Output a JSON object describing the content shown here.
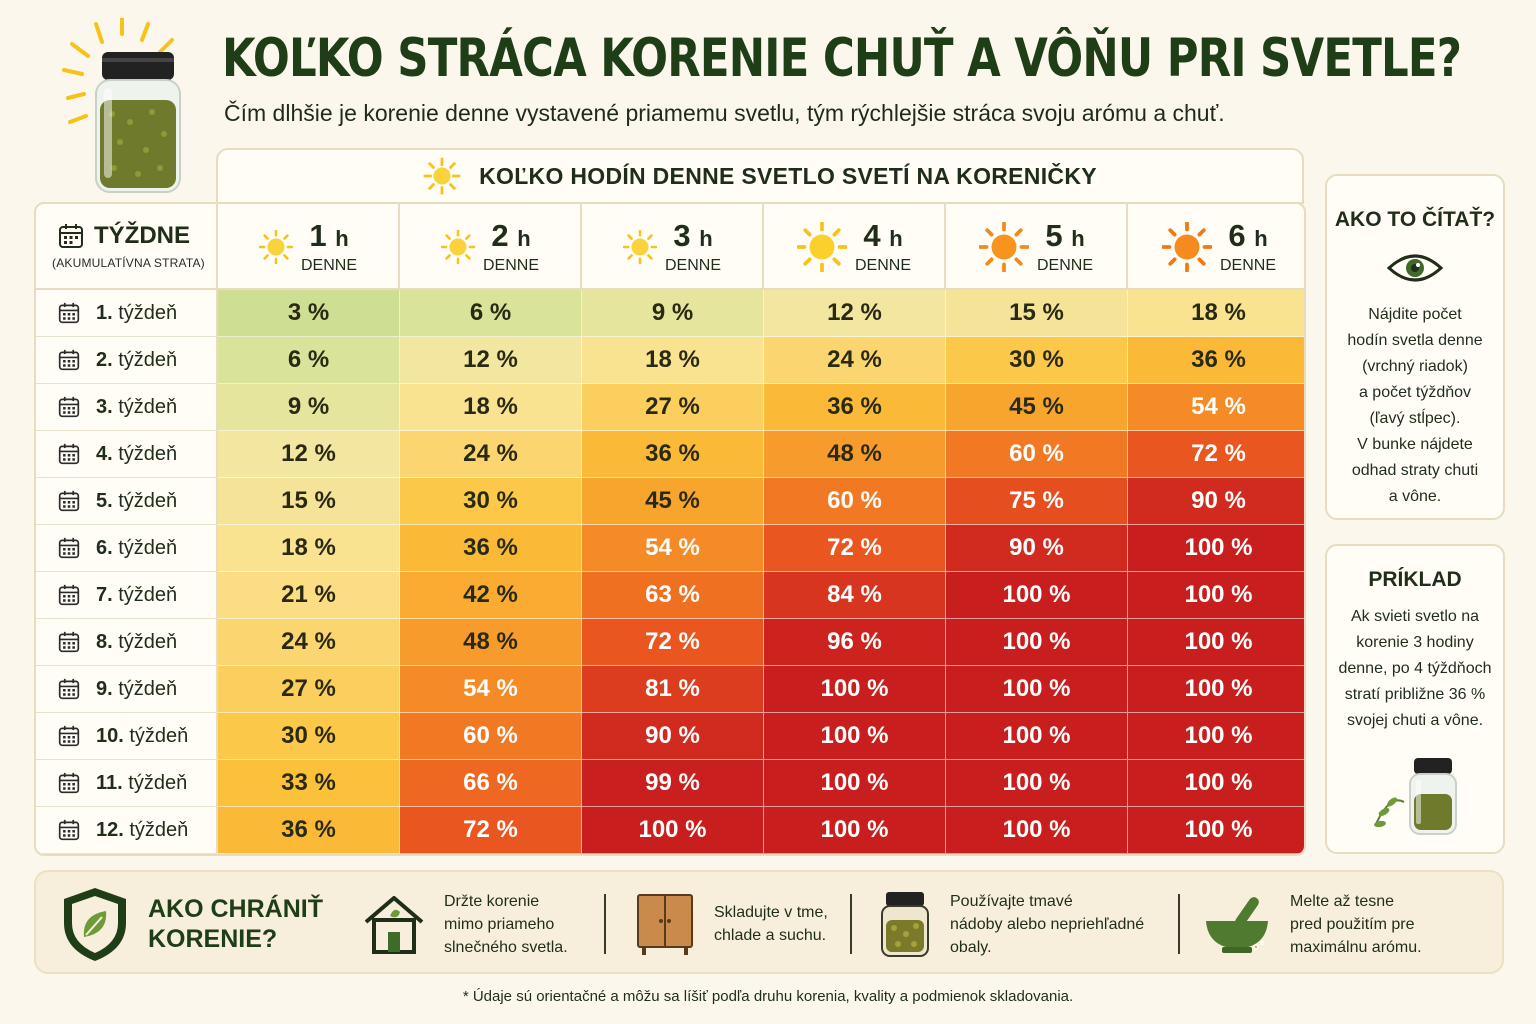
{
  "title": "KOĽKO STRÁCA KORENIE CHUŤ A VÔŇU PRI SVETLE?",
  "subtitle": "Čím dlhšie je korenie denne vystavené priamemu svetlu, tým rýchlejšie stráca svoju arómu a chuť.",
  "hours_banner": "KOĽKO HODÍN DENNE SVETLO SVETÍ NA KORENIČKY",
  "weeks_header": {
    "title": "TÝŽDNE",
    "sub": "(AKUMULATÍVNA STRATA)"
  },
  "hours": [
    {
      "num": "1",
      "unit": "h",
      "label": "DENNE"
    },
    {
      "num": "2",
      "unit": "h",
      "label": "DENNE"
    },
    {
      "num": "3",
      "unit": "h",
      "label": "DENNE"
    },
    {
      "num": "4",
      "unit": "h",
      "label": "DENNE"
    },
    {
      "num": "5",
      "unit": "h",
      "label": "DENNE"
    },
    {
      "num": "6",
      "unit": "h",
      "label": "DENNE"
    }
  ],
  "rows": [
    {
      "num": "1.",
      "label": "týždeň",
      "values": [
        "3 %",
        "6 %",
        "9 %",
        "12 %",
        "15 %",
        "18 %"
      ]
    },
    {
      "num": "2.",
      "label": "týždeň",
      "values": [
        "6 %",
        "12 %",
        "18 %",
        "24 %",
        "30 %",
        "36 %"
      ]
    },
    {
      "num": "3.",
      "label": "týždeň",
      "values": [
        "9 %",
        "18 %",
        "27 %",
        "36 %",
        "45 %",
        "54 %"
      ]
    },
    {
      "num": "4.",
      "label": "týždeň",
      "values": [
        "12 %",
        "24 %",
        "36 %",
        "48 %",
        "60 %",
        "72 %"
      ]
    },
    {
      "num": "5.",
      "label": "týždeň",
      "values": [
        "15 %",
        "30 %",
        "45 %",
        "60 %",
        "75 %",
        "90 %"
      ]
    },
    {
      "num": "6.",
      "label": "týždeň",
      "values": [
        "18 %",
        "36 %",
        "54 %",
        "72 %",
        "90 %",
        "100 %"
      ]
    },
    {
      "num": "7.",
      "label": "týždeň",
      "values": [
        "21 %",
        "42 %",
        "63 %",
        "84 %",
        "100 %",
        "100 %"
      ]
    },
    {
      "num": "8.",
      "label": "týždeň",
      "values": [
        "24 %",
        "48 %",
        "72 %",
        "96 %",
        "100 %",
        "100 %"
      ]
    },
    {
      "num": "9.",
      "label": "týždeň",
      "values": [
        "27 %",
        "54 %",
        "81 %",
        "100 %",
        "100 %",
        "100 %"
      ]
    },
    {
      "num": "10.",
      "label": "týždeň",
      "values": [
        "30 %",
        "60 %",
        "90 %",
        "100 %",
        "100 %",
        "100 %"
      ]
    },
    {
      "num": "11.",
      "label": "týždeň",
      "values": [
        "33 %",
        "66 %",
        "99 %",
        "100 %",
        "100 %",
        "100 %"
      ]
    },
    {
      "num": "12.",
      "label": "týždeň",
      "values": [
        "36 %",
        "72 %",
        "100 %",
        "100 %",
        "100 %",
        "100 %"
      ]
    }
  ],
  "how_to_read": {
    "title": "AKO TO ČÍTAŤ?",
    "lines": [
      "Nájdite počet",
      "hodín svetla denne",
      "(vrchný riadok)",
      "a počet týždňov",
      "(ľavý stĺpec).",
      "V bunke nájdete",
      "odhad straty chuti",
      "a vône."
    ]
  },
  "example": {
    "title": "PRÍKLAD",
    "lines": [
      "Ak svieti svetlo na",
      "korenie 3 hodiny",
      "denne, po 4 týždňoch",
      "stratí približne 36 %",
      "svojej chuti a vône."
    ]
  },
  "protect": {
    "title_lines": [
      "AKO CHRÁNIŤ",
      "KORENIE?"
    ],
    "tips": [
      {
        "icon": "house-icon",
        "lines": [
          "Držte korenie",
          "mimo priameho",
          "slnečného svetla."
        ]
      },
      {
        "icon": "cabinet-icon",
        "lines": [
          "Skladujte v tme,",
          "chlade a suchu."
        ]
      },
      {
        "icon": "dark-jar-icon",
        "lines": [
          "Používajte tmavé",
          "nádoby alebo nepriehľadné",
          "obaly."
        ]
      },
      {
        "icon": "mortar-icon",
        "lines": [
          "Melte až tesne",
          "pred použitím pre",
          "maximálnu arómu."
        ]
      }
    ]
  },
  "footnote": "* Údaje sú orientačné a môžu sa líšiť podľa druhu korenia, kvality a podmienok skladovania.",
  "colors": {
    "title": "#1f3d17",
    "scale_low": "#c3d98a",
    "scale_mid": "#fbc33c",
    "scale_high": "#c81e1e"
  }
}
